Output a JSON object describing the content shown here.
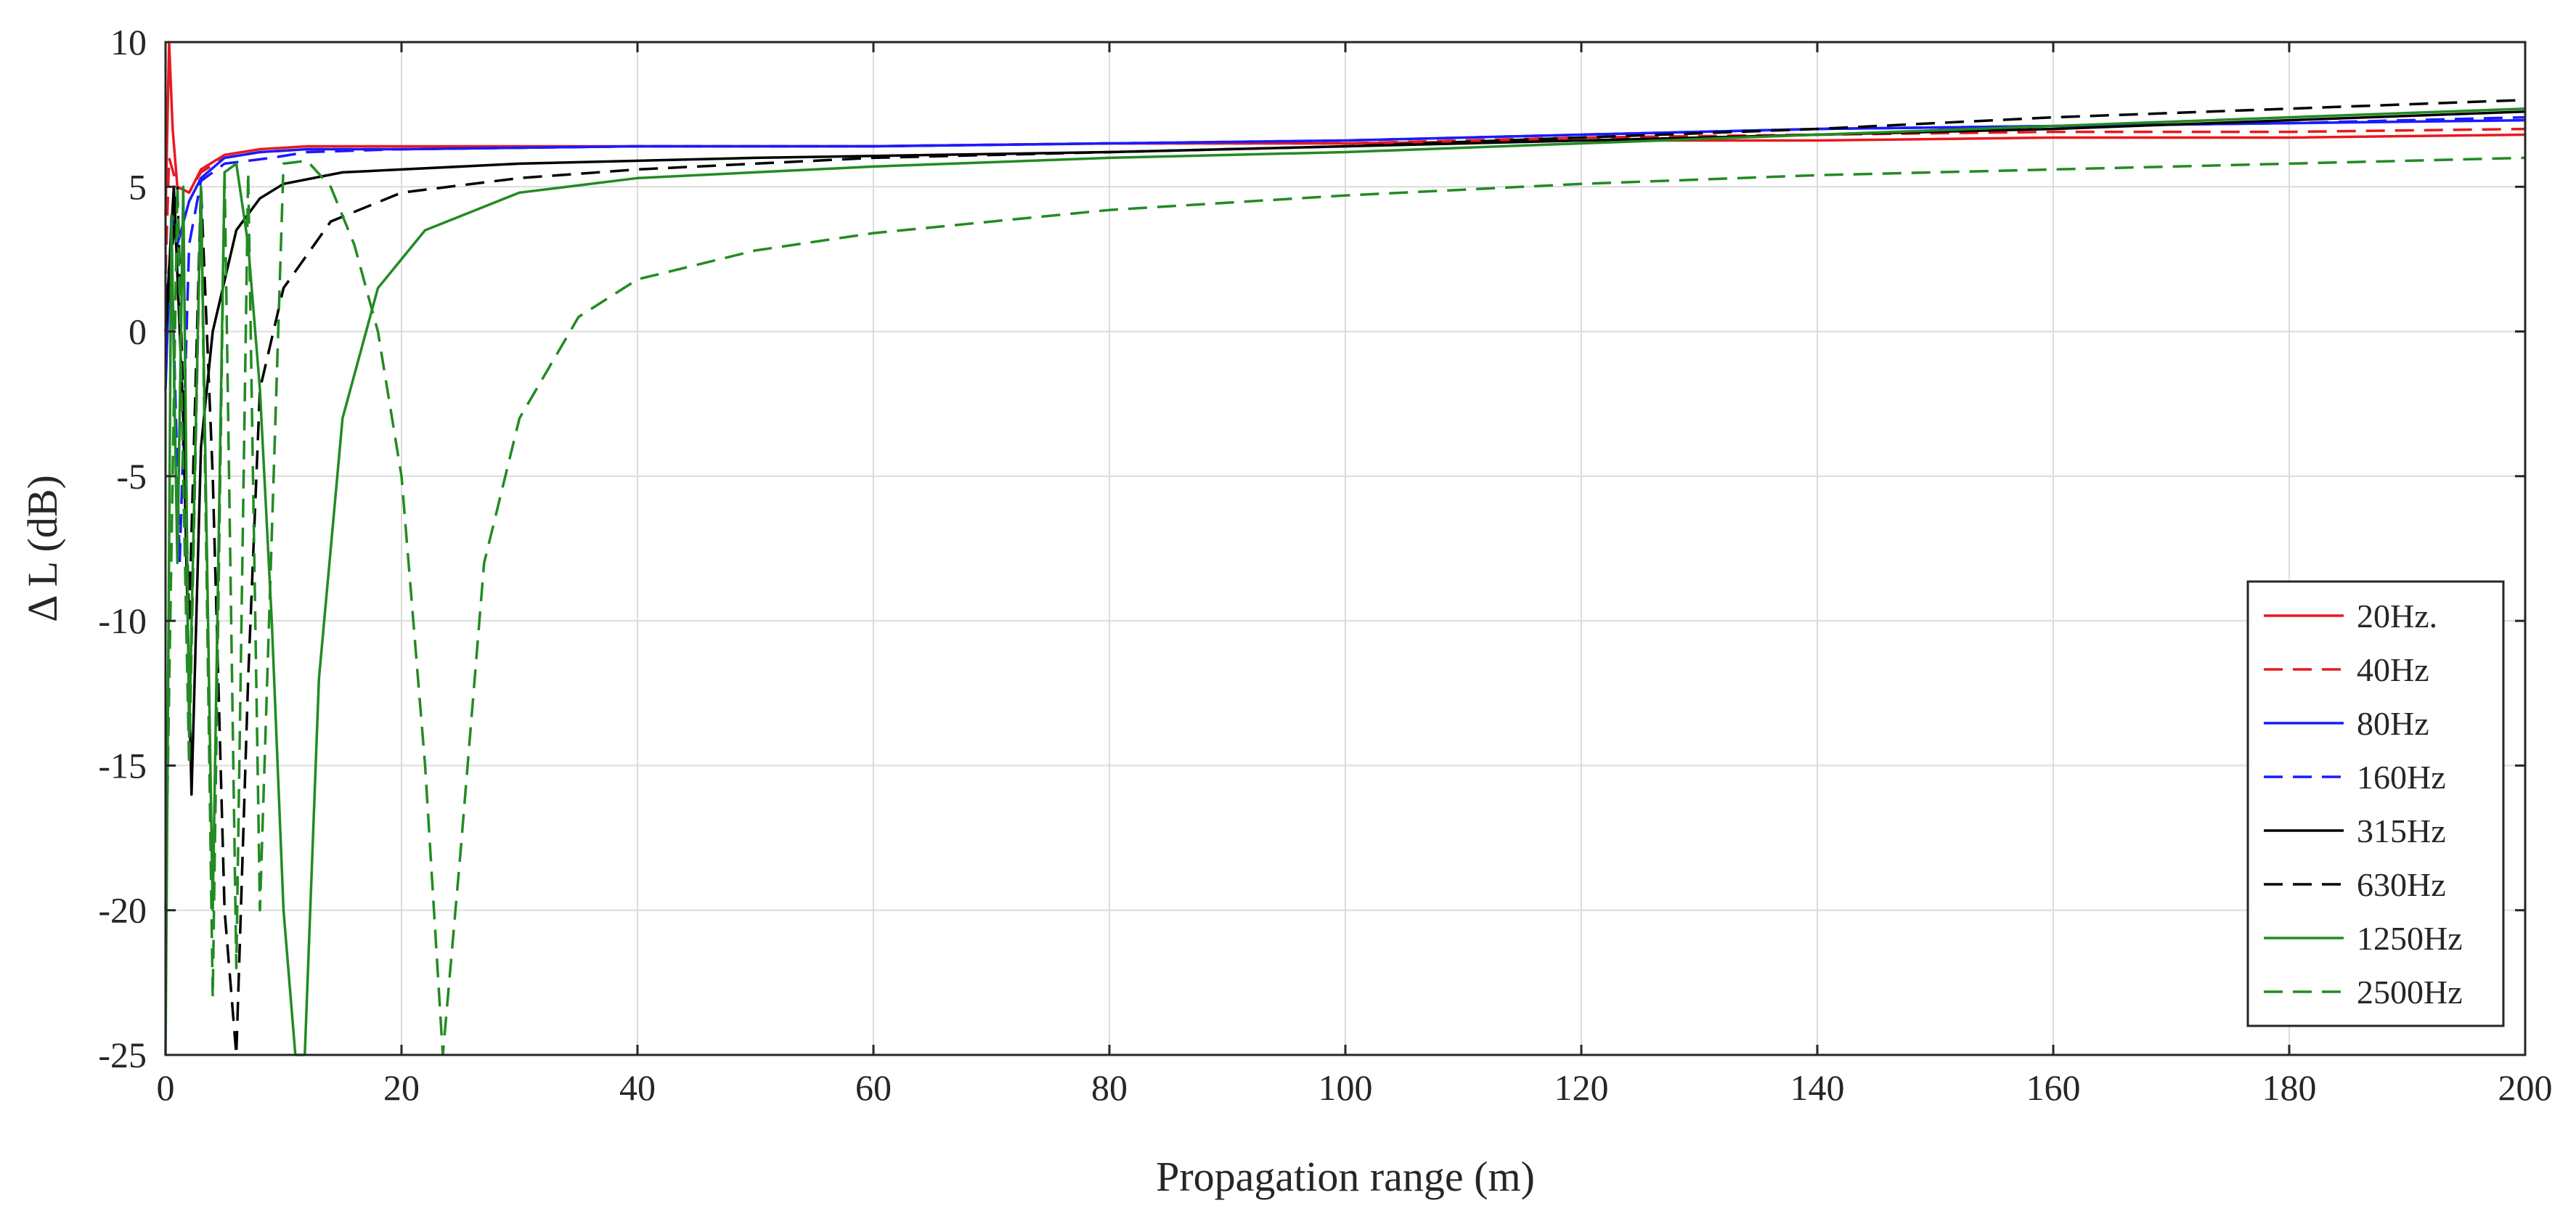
{
  "chart_data": {
    "type": "line",
    "title": "",
    "xlabel": "Propagation range (m)",
    "ylabel": "Δ L (dB)",
    "xlim": [
      0,
      200
    ],
    "ylim": [
      -25,
      10
    ],
    "xticks": [
      0,
      20,
      40,
      60,
      80,
      100,
      120,
      140,
      160,
      180,
      200
    ],
    "yticks": [
      10,
      5,
      0,
      -5,
      -10,
      -15,
      -20,
      -25
    ],
    "grid": true,
    "legend_position": "bottom-right",
    "series": [
      {
        "name": "20Hz.",
        "color": "#e8191f",
        "style": "solid",
        "x": [
          0,
          0.3,
          0.6,
          1,
          2,
          3,
          5,
          8,
          12,
          20,
          40,
          60,
          80,
          100,
          120,
          140,
          160,
          180,
          200
        ],
        "y": [
          4,
          10,
          7,
          5,
          4.8,
          5.6,
          6.1,
          6.3,
          6.4,
          6.4,
          6.4,
          6.4,
          6.5,
          6.5,
          6.6,
          6.6,
          6.7,
          6.7,
          6.8
        ]
      },
      {
        "name": "40Hz",
        "color": "#e8191f",
        "style": "dashed",
        "x": [
          0,
          0.3,
          1,
          2,
          3,
          5,
          8,
          12,
          20,
          40,
          60,
          80,
          100,
          120,
          140,
          160,
          180,
          200
        ],
        "y": [
          2,
          6,
          5,
          4.8,
          5.5,
          6,
          6.2,
          6.3,
          6.3,
          6.4,
          6.4,
          6.5,
          6.5,
          6.7,
          6.8,
          6.9,
          6.9,
          7
        ]
      },
      {
        "name": "80Hz",
        "color": "#1a1aff",
        "style": "solid",
        "x": [
          0,
          0.5,
          1,
          2,
          3,
          5,
          8,
          12,
          20,
          40,
          60,
          80,
          100,
          120,
          140,
          160,
          180,
          200
        ],
        "y": [
          -2,
          4,
          3,
          4.5,
          5.3,
          6,
          6.2,
          6.3,
          6.3,
          6.4,
          6.4,
          6.5,
          6.6,
          6.8,
          7,
          7.1,
          7.2,
          7.3
        ]
      },
      {
        "name": "160Hz",
        "color": "#1a1aff",
        "style": "dashed",
        "x": [
          0,
          0.5,
          1.2,
          2,
          3,
          5,
          7,
          9,
          12,
          20,
          40,
          60,
          80,
          100,
          120,
          140,
          160,
          180,
          200
        ],
        "y": [
          1,
          3,
          -8,
          3,
          5.2,
          5.8,
          5.9,
          6,
          6.2,
          6.3,
          6.4,
          6.4,
          6.5,
          6.6,
          6.8,
          7,
          7.1,
          7.2,
          7.4
        ]
      },
      {
        "name": "315Hz",
        "color": "#000000",
        "style": "solid",
        "x": [
          0,
          0.7,
          1.5,
          2.2,
          3,
          4,
          6,
          8,
          10,
          15,
          20,
          30,
          50,
          80,
          100,
          120,
          140,
          160,
          180,
          200
        ],
        "y": [
          0,
          5,
          -3,
          -16,
          -4,
          0,
          3.5,
          4.6,
          5.1,
          5.5,
          5.6,
          5.8,
          6,
          6.2,
          6.4,
          6.6,
          6.8,
          7,
          7.3,
          7.6
        ]
      },
      {
        "name": "630Hz",
        "color": "#000000",
        "style": "dashed",
        "x": [
          0,
          1,
          2,
          3,
          4,
          5,
          6,
          7,
          8,
          10,
          14,
          20,
          30,
          40,
          60,
          80,
          100,
          120,
          140,
          160,
          180,
          200
        ],
        "y": [
          0,
          5,
          -10,
          5,
          -5,
          -20,
          -25,
          -12,
          -2,
          1.5,
          3.8,
          4.8,
          5.3,
          5.6,
          6,
          6.2,
          6.4,
          6.7,
          7,
          7.4,
          7.7,
          8
        ]
      },
      {
        "name": "1250Hz",
        "color": "#228b22",
        "style": "solid",
        "x": [
          0,
          0.5,
          1,
          1.5,
          2,
          3,
          4,
          5,
          6,
          7,
          8,
          9,
          10,
          11,
          11.8,
          13,
          15,
          18,
          22,
          30,
          40,
          60,
          80,
          100,
          120,
          140,
          160,
          180,
          200
        ],
        "y": [
          -25,
          4,
          -8,
          5,
          -14,
          5,
          -20,
          5.5,
          5.8,
          3,
          -2,
          -10,
          -20,
          -25,
          -25,
          -12,
          -3,
          1.5,
          3.5,
          4.8,
          5.3,
          5.7,
          6,
          6.2,
          6.5,
          6.8,
          7.1,
          7.4,
          7.7
        ]
      },
      {
        "name": "2500Hz",
        "color": "#228b22",
        "style": "dashed",
        "x": [
          0,
          1,
          2,
          3,
          4,
          5,
          6,
          7,
          8,
          10,
          12,
          14,
          16,
          18,
          20,
          22,
          23.5,
          25,
          27,
          30,
          35,
          40,
          50,
          60,
          80,
          100,
          120,
          140,
          160,
          180,
          200
        ],
        "y": [
          -20,
          5,
          -15,
          5,
          -23,
          5.5,
          -22,
          5.5,
          -20,
          5.8,
          5.9,
          5,
          3,
          0,
          -5,
          -15,
          -25,
          -18,
          -8,
          -3,
          0.5,
          1.8,
          2.8,
          3.4,
          4.2,
          4.7,
          5.1,
          5.4,
          5.6,
          5.8,
          6
        ]
      }
    ]
  }
}
